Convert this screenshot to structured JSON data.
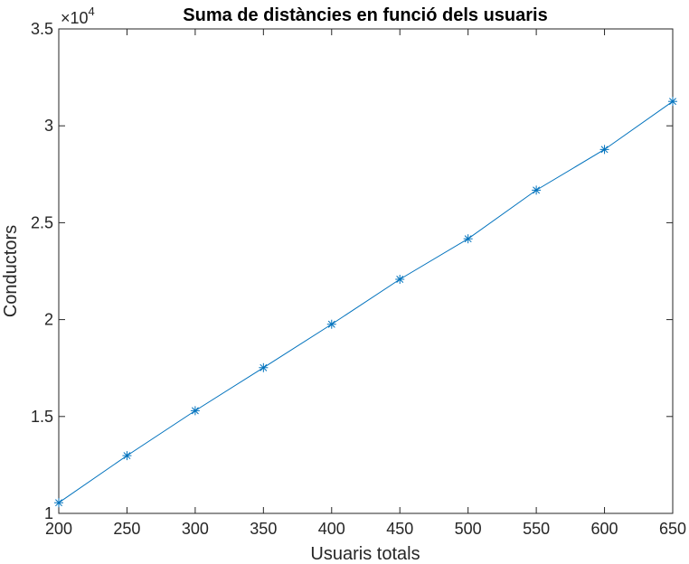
{
  "chart_data": {
    "type": "line",
    "title": "Suma de distàncies en funció dels usuaris",
    "xlabel": "Usuaris totals",
    "ylabel": "Conductors",
    "y_exponent_base": "×10",
    "y_exponent_power": "4",
    "xlim": [
      200,
      650
    ],
    "ylim": [
      10000,
      35000
    ],
    "x_ticks": [
      200,
      250,
      300,
      350,
      400,
      450,
      500,
      550,
      600,
      650
    ],
    "x_tick_labels": [
      "200",
      "250",
      "300",
      "350",
      "400",
      "450",
      "500",
      "550",
      "600",
      "650"
    ],
    "y_ticks": [
      10000,
      15000,
      20000,
      25000,
      30000,
      35000
    ],
    "y_tick_labels": [
      "1",
      "1.5",
      "2",
      "2.5",
      "3",
      "3.5"
    ],
    "grid": false,
    "marker": "asterisk",
    "color": "#0072BD",
    "series": [
      {
        "x": [
          200,
          250,
          300,
          350,
          400,
          450,
          500,
          550,
          600,
          650
        ],
        "y": [
          10550,
          12980,
          15300,
          17520,
          19760,
          22080,
          24170,
          26680,
          28780,
          31260
        ]
      }
    ]
  }
}
